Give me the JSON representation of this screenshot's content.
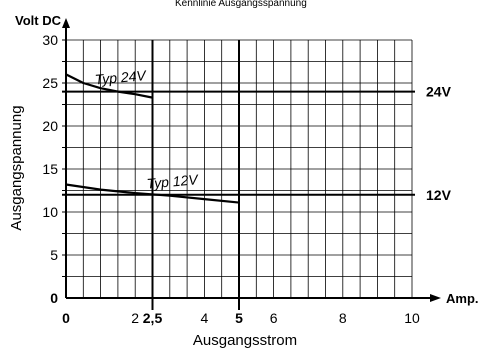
{
  "chart_data": {
    "type": "line",
    "title": "Kennlinie Ausgangsspannung",
    "xlabel": "Ausgangsstrom",
    "ylabel": "Ausgangspannung",
    "x_unit": "Amp.",
    "y_unit": "Volt DC",
    "xlim": [
      0,
      10
    ],
    "ylim": [
      0,
      30
    ],
    "grid": true,
    "x_ticks": [
      {
        "value": 0,
        "label": "0",
        "bold": true
      },
      {
        "value": 2,
        "label": "2",
        "bold": false
      },
      {
        "value": 2.5,
        "label": "2,5",
        "bold": true
      },
      {
        "value": 4,
        "label": "4",
        "bold": false
      },
      {
        "value": 5,
        "label": "5",
        "bold": true
      },
      {
        "value": 6,
        "label": "6",
        "bold": false
      },
      {
        "value": 8,
        "label": "8",
        "bold": false
      },
      {
        "value": 10,
        "label": "10",
        "bold": false
      }
    ],
    "y_ticks": [
      {
        "value": 0,
        "label": "0",
        "bold": true
      },
      {
        "value": 5,
        "label": "5",
        "bold": false
      },
      {
        "value": 10,
        "label": "10",
        "bold": false
      },
      {
        "value": 15,
        "label": "15",
        "bold": false
      },
      {
        "value": 20,
        "label": "20",
        "bold": false
      },
      {
        "value": 25,
        "label": "25",
        "bold": false
      },
      {
        "value": 30,
        "label": "30",
        "bold": false
      }
    ],
    "series": [
      {
        "name": "Typ 24V",
        "x": [
          0,
          0.5,
          1,
          1.5,
          2,
          2.5
        ],
        "y": [
          26,
          25,
          24.4,
          24,
          23.7,
          23.3
        ]
      },
      {
        "name": "Typ 12V",
        "x": [
          0,
          1,
          2,
          3,
          4,
          5
        ],
        "y": [
          13.2,
          12.6,
          12.2,
          11.9,
          11.5,
          11.1
        ]
      }
    ],
    "reference_lines": [
      {
        "label": "24V",
        "y": 24
      },
      {
        "label": "12V",
        "y": 12
      }
    ],
    "vertical_markers": [
      2.5,
      5
    ]
  },
  "colors": {
    "ink": "#000000",
    "grid": "#000000",
    "background": "#ffffff"
  }
}
